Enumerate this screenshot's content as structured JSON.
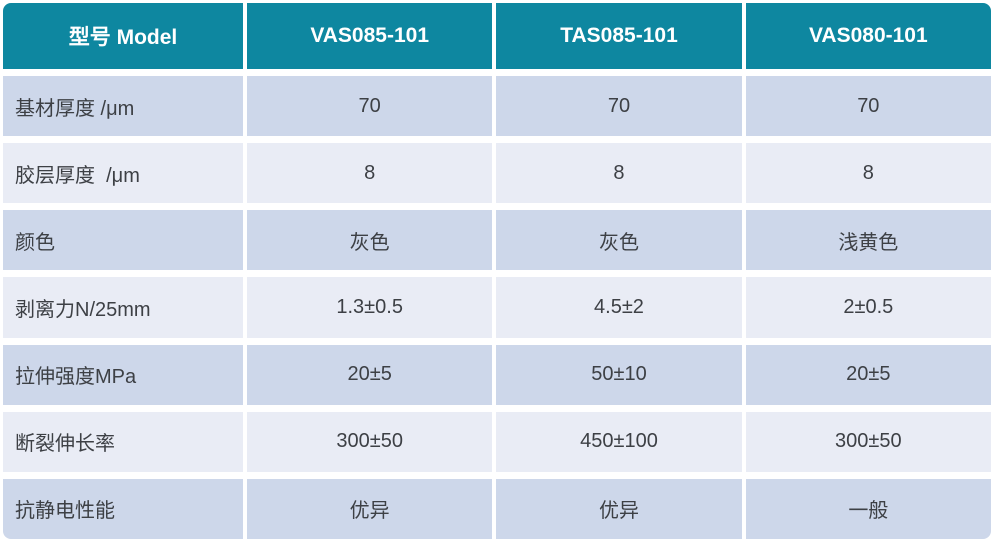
{
  "table": {
    "header": {
      "label": "型号 Model",
      "columns": [
        "VAS085-101",
        "TAS085-101",
        "VAS080-101"
      ]
    },
    "rows": [
      {
        "label": "基材厚度 /μm",
        "values": [
          "70",
          "70",
          "70"
        ]
      },
      {
        "label": "胶层厚度  /μm",
        "values": [
          "8",
          "8",
          "8"
        ]
      },
      {
        "label": "颜色",
        "values": [
          "灰色",
          "灰色",
          "浅黄色"
        ]
      },
      {
        "label": "剥离力N/25mm",
        "values": [
          "1.3±0.5",
          "4.5±2",
          "2±0.5"
        ]
      },
      {
        "label": "拉伸强度MPa",
        "values": [
          "20±5",
          "50±10",
          "20±5"
        ]
      },
      {
        "label": "断裂伸长率",
        "values": [
          "300±50",
          "450±100",
          "300±50"
        ]
      },
      {
        "label": "抗静电性能",
        "values": [
          "优异",
          "优异",
          "一般"
        ]
      }
    ],
    "colors": {
      "header_bg": "#0e87a0",
      "header_text": "#ffffff",
      "row_dark_bg": "#cdd7ea",
      "row_light_bg": "#e9ecf5",
      "body_text": "#3d4045",
      "gap": "#ffffff"
    }
  }
}
